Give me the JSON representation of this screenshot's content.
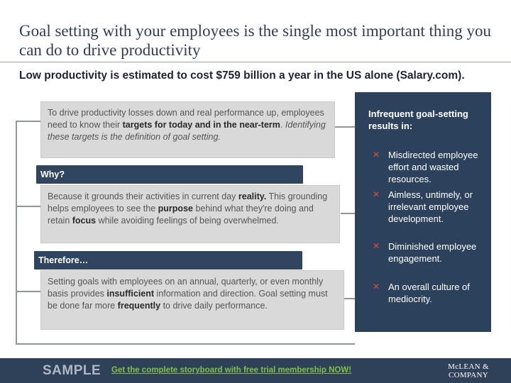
{
  "title": "Goal setting with your employees is the single most important thing you can do to drive productivity",
  "subtitle": "Low productivity is estimated to cost $759 billion a year in the US alone (Salary.com).",
  "box1": {
    "t1": "To drive productivity losses down and real performance up, employees need to know their ",
    "b1": "targets for today and in the near-term",
    "t2": ". ",
    "i1": "Identifying these targets is the definition of goal setting."
  },
  "why_label": "Why?",
  "box2": {
    "t1": "Because it grounds their activities in current day ",
    "b1": "reality.",
    "t2": " This grounding helps employees to see the ",
    "b2": "purpose",
    "t3": " behind what they're doing and retain ",
    "b3": "focus",
    "t4": " while avoiding feelings of being overwhelmed."
  },
  "therefore_label": "Therefore…",
  "box3": {
    "t1": "Setting goals with employees on an annual, quarterly, or even monthly basis provides ",
    "b1": "insufficient",
    "t2": " information and direction. Goal setting must be done far more ",
    "b2": "frequently",
    "t3": " to drive daily performance."
  },
  "results": {
    "heading": "Infrequent goal-setting results in:",
    "marker": "✕",
    "items": [
      "Misdirected employee effort and wasted resources.",
      "Aimless, untimely, or irrelevant employee development.",
      "Diminished employee engagement.",
      "An overall culture of mediocrity."
    ]
  },
  "footer": {
    "sample": "SAMPLE",
    "cta": "Get the complete storyboard with free trial membership NOW!",
    "logo_line1": "McLEAN &",
    "logo_line2": "COMPANY"
  },
  "colors": {
    "navy": "#2c425c",
    "red_marker": "#e04a3a",
    "cta_green": "#7fc241"
  }
}
